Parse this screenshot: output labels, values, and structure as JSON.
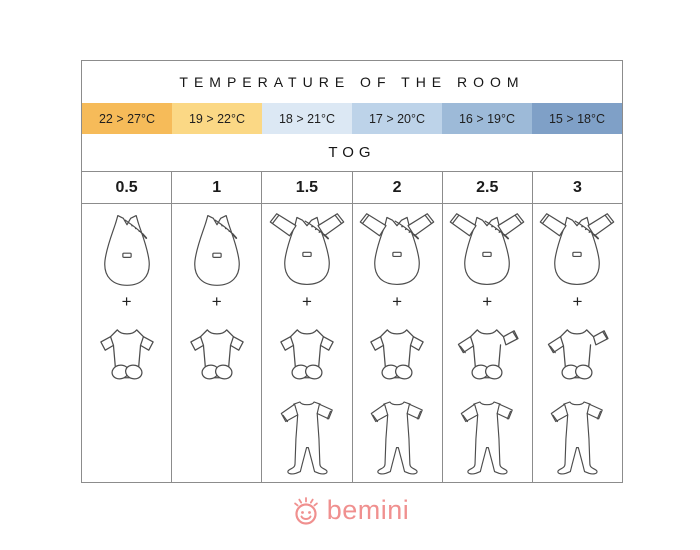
{
  "table": {
    "title": "TEMPERATURE OF THE ROOM",
    "tog_label": "TOG",
    "plus_sign": "+",
    "columns": [
      {
        "temp": "22 > 27°C",
        "temp_color": "#F6BB59",
        "tog": "0.5",
        "items": [
          "bag-sleeveless",
          "plus",
          "bodysuit-short"
        ]
      },
      {
        "temp": "19 > 22°C",
        "temp_color": "#FBD885",
        "tog": "1",
        "items": [
          "bag-sleeveless",
          "plus",
          "bodysuit-short"
        ]
      },
      {
        "temp": "18 > 21°C",
        "temp_color": "#DCE8F4",
        "tog": "1.5",
        "items": [
          "bag-sleeved",
          "plus",
          "bodysuit-short",
          "pajamas"
        ]
      },
      {
        "temp": "17 > 20°C",
        "temp_color": "#BDD3E9",
        "tog": "2",
        "items": [
          "bag-sleeved",
          "plus",
          "bodysuit-short",
          "pajamas"
        ]
      },
      {
        "temp": "16 > 19°C",
        "temp_color": "#9DBAD8",
        "tog": "2.5",
        "items": [
          "bag-sleeved",
          "plus",
          "bodysuit-long",
          "pajamas"
        ]
      },
      {
        "temp": "15 > 18°C",
        "temp_color": "#7FA0C7",
        "tog": "3",
        "items": [
          "bag-sleeved",
          "plus",
          "bodysuit-long",
          "pajamas"
        ]
      }
    ]
  },
  "footer": {
    "brand": "bemini",
    "brand_color": "#F0908F"
  }
}
